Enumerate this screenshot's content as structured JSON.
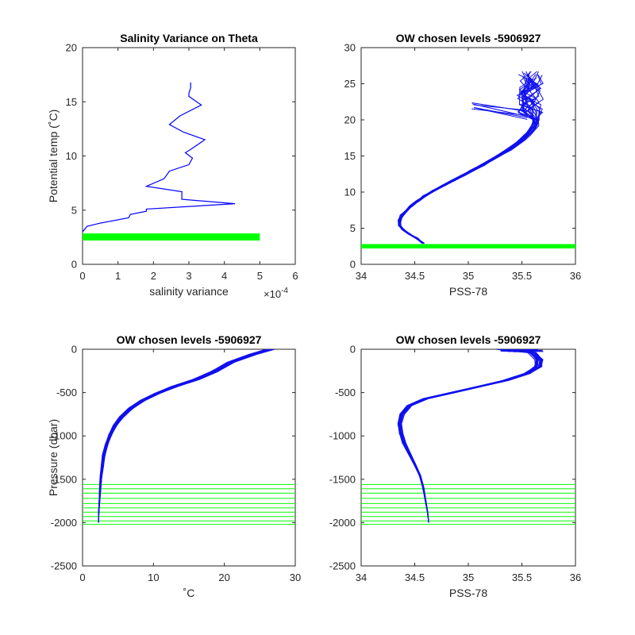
{
  "chart_data": [
    {
      "type": "line",
      "title": "Salinity Variance on Theta",
      "xlabel": "salinity variance",
      "x_exponent_label": "×10",
      "x_exponent_power": "-4",
      "ylabel": "Potential temp (˚C)",
      "xlim": [
        0,
        0.0006
      ],
      "ylim": [
        0,
        20
      ],
      "xticks": [
        0,
        0.0001,
        0.0002,
        0.0003,
        0.0004,
        0.0005,
        0.0006
      ],
      "xticklabels": [
        "0",
        "1",
        "2",
        "3",
        "4",
        "5",
        "6"
      ],
      "yticks": [
        0,
        5,
        10,
        15,
        20
      ],
      "yticklabels": [
        "0",
        "5",
        "10",
        "15",
        "20"
      ],
      "series": [
        {
          "color": "#0000ff",
          "x": [
            0.0,
            1.25e-05,
            5e-05,
            0.00013,
            0.000135,
            0.00018,
            0.00018,
            0.00043,
            0.00028,
            0.00028,
            0.00018,
            0.00023,
            0.000245,
            0.0003,
            0.00031,
            0.00029,
            0.000305,
            0.000345,
            0.000285,
            0.000245,
            0.000275,
            0.000335,
            0.0003,
            0.0003,
            0.000305,
            0.000305
          ],
          "y": [
            3.0,
            3.5,
            3.8,
            4.3,
            4.6,
            4.9,
            5.1,
            5.6,
            6.0,
            6.7,
            7.2,
            7.9,
            8.6,
            9.2,
            9.8,
            10.3,
            10.6,
            11.5,
            12.2,
            12.9,
            13.7,
            14.7,
            15.5,
            15.8,
            16.3,
            16.8
          ]
        }
      ],
      "bands": [
        {
          "color": "#00ff00",
          "x0": 0.0,
          "x1": 0.0005,
          "y0": 2.2,
          "y1": 2.85
        }
      ]
    },
    {
      "type": "line",
      "title": "OW chosen levels -5906927",
      "xlabel": "PSS-78",
      "ylabel": "",
      "xlim": [
        34,
        36
      ],
      "ylim": [
        0,
        30
      ],
      "xticks": [
        34,
        34.5,
        35,
        35.5,
        36
      ],
      "xticklabels": [
        "34",
        "34.5",
        "35",
        "35.5",
        "36"
      ],
      "yticks": [
        0,
        5,
        10,
        15,
        20,
        25,
        30
      ],
      "yticklabels": [
        "0",
        "5",
        "10",
        "15",
        "20",
        "25",
        "30"
      ],
      "profile": {
        "color": "#1010ee",
        "count": 22,
        "x": [
          34.58,
          34.52,
          34.45,
          34.39,
          34.36,
          34.36,
          34.38,
          34.42,
          34.47,
          34.53,
          34.6,
          34.68,
          34.77,
          34.86,
          34.95,
          35.04,
          35.13,
          35.21,
          35.29,
          35.37,
          35.44,
          35.5,
          35.55,
          35.59,
          35.62,
          35.63
        ],
        "y": [
          2.9,
          3.6,
          4.2,
          4.8,
          5.4,
          6.1,
          6.8,
          7.4,
          8.1,
          8.8,
          9.5,
          10.2,
          10.9,
          11.6,
          12.3,
          13.0,
          13.7,
          14.4,
          15.1,
          15.8,
          16.5,
          17.2,
          17.9,
          18.5,
          19.2,
          20.0
        ],
        "top_spread_x": [
          35.0,
          35.7
        ],
        "top_y": [
          20,
          26.7
        ],
        "arm_x": [
          35.02,
          35.18
        ],
        "arm_y": [
          21.0,
          22.4
        ]
      },
      "bands": [
        {
          "color": "#00ff00",
          "x0": 34.0,
          "x1": 36.0,
          "y0": 2.2,
          "y1": 2.8
        }
      ]
    },
    {
      "type": "line",
      "title": "OW chosen levels -5906927",
      "xlabel": "˚C",
      "ylabel": "Pressure (dbar)",
      "xlim": [
        0,
        30
      ],
      "ylim": [
        -2500,
        0
      ],
      "xticks": [
        0,
        10,
        20,
        30
      ],
      "xticklabels": [
        "0",
        "10",
        "20",
        "30"
      ],
      "yticks": [
        -2500,
        -2000,
        -1500,
        -1000,
        -500,
        0
      ],
      "yticklabels": [
        "-2500",
        "-2000",
        "-1500",
        "-1000",
        "-500",
        "0"
      ],
      "profile": {
        "color": "#1010ee",
        "count": 22,
        "x": [
          26.5,
          24.0,
          21.0,
          18.5,
          16.0,
          13.0,
          10.5,
          8.5,
          6.8,
          5.5,
          4.6,
          3.9,
          3.4,
          3.0,
          2.8,
          2.6,
          2.5,
          2.4,
          2.3,
          2.25
        ],
        "y": [
          0,
          -60,
          -150,
          -260,
          -350,
          -430,
          -510,
          -590,
          -680,
          -780,
          -880,
          -990,
          -1100,
          -1220,
          -1350,
          -1480,
          -1600,
          -1730,
          -1860,
          -2000
        ]
      },
      "hlines": {
        "color": "#00ff00",
        "x0": 0,
        "x1": 30,
        "y": [
          -1560,
          -1610,
          -1660,
          -1720,
          -1780,
          -1830,
          -1880,
          -1930,
          -1980,
          -2020
        ]
      }
    },
    {
      "type": "line",
      "title": "OW chosen levels -5906927",
      "xlabel": "PSS-78",
      "ylabel": "",
      "xlim": [
        34,
        36
      ],
      "ylim": [
        -2500,
        0
      ],
      "xticks": [
        34,
        34.5,
        35,
        35.5,
        36
      ],
      "xticklabels": [
        "34",
        "34.5",
        "35",
        "35.5",
        "36"
      ],
      "yticks": [
        -2500,
        -2000,
        -1500,
        -1000,
        -500,
        0
      ],
      "yticklabels": [
        "-2500",
        "-2000",
        "-1500",
        "-1000",
        "-500",
        "0"
      ],
      "profile": {
        "color": "#1010ee",
        "count": 22,
        "x": [
          35.3,
          35.6,
          35.66,
          35.65,
          35.55,
          35.35,
          35.1,
          34.85,
          34.6,
          34.45,
          34.38,
          34.36,
          34.37,
          34.4,
          34.45,
          34.5,
          34.55,
          34.58,
          34.6,
          34.62,
          34.63
        ],
        "y": [
          0,
          -40,
          -120,
          -200,
          -280,
          -360,
          -430,
          -500,
          -570,
          -650,
          -750,
          -860,
          -970,
          -1080,
          -1200,
          -1330,
          -1460,
          -1600,
          -1740,
          -1880,
          -2000
        ]
      },
      "hlines": {
        "color": "#00ff00",
        "x0": 34,
        "x1": 36,
        "y": [
          -1560,
          -1610,
          -1660,
          -1720,
          -1780,
          -1830,
          -1880,
          -1930,
          -1980,
          -2020
        ]
      }
    }
  ]
}
